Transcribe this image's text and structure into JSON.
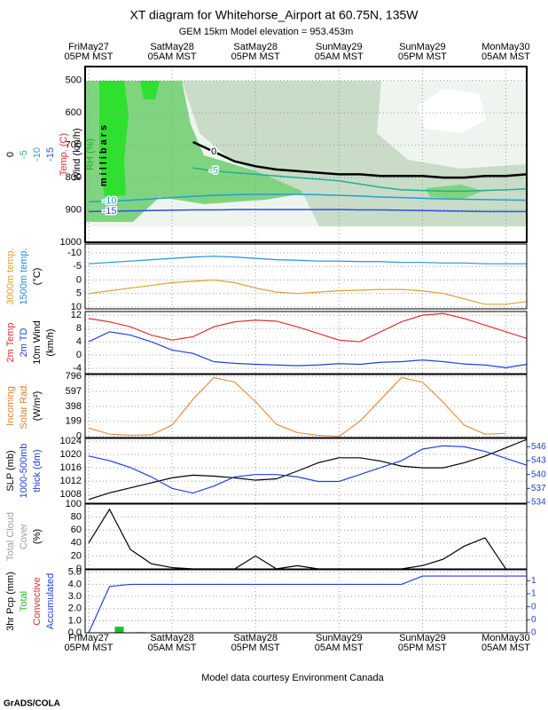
{
  "title": "XT diagram for Whitehorse_Airport at 60.75N, 135W",
  "subtitle": "GEM 15km Model elevation = 953.453m",
  "footer": "Model data courtesy Environment Canada",
  "credit": "GrADS/COLA",
  "chart_data": [
    {
      "type": "contour",
      "categories": [
        "FriMay27\n05PM MST",
        null,
        null,
        null,
        "SatMay28\n05AM MST",
        null,
        null,
        null,
        "SatMay28\n05PM MST",
        null,
        null,
        null,
        "SunMay29\n05AM MST",
        null,
        null,
        null,
        "SunMay29\n05PM MST",
        null,
        null,
        null,
        "MonMay30\n05AM MST",
        null
      ],
      "ylabels": [
        {
          "text": "Temp. (C)",
          "color": "#e03030"
        },
        {
          "text": "Wind (km/h)",
          "color": "#000000"
        },
        {
          "text": "RH (%)",
          "color": "#20b020"
        },
        {
          "text": "millibars",
          "color": "#000000"
        }
      ],
      "ylim": [
        1000,
        457
      ],
      "yticks": [
        500,
        600,
        700,
        800,
        900,
        1000
      ],
      "series": [
        {
          "name": "0",
          "color": "#000000",
          "values": [
            null,
            null,
            null,
            null,
            null,
            690,
            720,
            750,
            765,
            775,
            780,
            785,
            790,
            790,
            795,
            795,
            795,
            800,
            800,
            795,
            795,
            790
          ]
        },
        {
          "name": "-5",
          "color": "#20b090",
          "values": [
            null,
            null,
            null,
            null,
            null,
            770,
            780,
            785,
            790,
            795,
            800,
            805,
            810,
            820,
            830,
            838,
            840,
            842,
            842,
            840,
            838,
            835
          ]
        },
        {
          "name": "-10",
          "color": "#20a0d0",
          "values": [
            875,
            873,
            870,
            866,
            862,
            858,
            855,
            853,
            852,
            852,
            852,
            853,
            855,
            857,
            860,
            862,
            864,
            866,
            867,
            868,
            869,
            870
          ]
        },
        {
          "name": "-15",
          "color": "#3050e0",
          "values": [
            905,
            904,
            903,
            902,
            901,
            900,
            900,
            899,
            899,
            899,
            899,
            899,
            899,
            900,
            900,
            901,
            902,
            903,
            904,
            905,
            905,
            905
          ]
        }
      ]
    },
    {
      "type": "line",
      "ylabels": [
        {
          "text": "(°C)",
          "color": "#000000"
        }
      ],
      "ylim": [
        10.7,
        -13.3
      ],
      "yticks": [
        -10,
        -5,
        0,
        5,
        10
      ],
      "series": [
        {
          "name": "3000m temp.",
          "color": "#e0a030",
          "values": [
            5,
            4,
            3,
            2,
            1,
            0.5,
            0,
            1,
            3,
            4.5,
            5,
            4.5,
            4,
            3.8,
            3.5,
            3.5,
            4,
            5,
            7,
            9,
            9,
            8
          ]
        },
        {
          "name": "1500m temp.",
          "color": "#2090e0",
          "values": [
            -6,
            -6.5,
            -7,
            -7.5,
            -8,
            -8.5,
            -8.8,
            -8.5,
            -8,
            -7.5,
            -7.3,
            -7,
            -7,
            -6.8,
            -6.8,
            -6.5,
            -6.5,
            -6.3,
            -6.3,
            -6,
            -6,
            -6
          ]
        }
      ]
    },
    {
      "type": "line",
      "ylabels": [
        {
          "text": "10m Wind",
          "color": "#000000"
        },
        {
          "text": "(km/h)",
          "color": "#000000"
        }
      ],
      "ylim": [
        -5.6,
        13.1
      ],
      "yticks": [
        -4,
        0,
        4,
        8,
        12
      ],
      "series": [
        {
          "name": "2m Temp",
          "color": "#e03030",
          "values": [
            11,
            10,
            8.5,
            6,
            4.5,
            5.5,
            8.5,
            10,
            10.5,
            10.2,
            8.5,
            6.5,
            4.5,
            4,
            7,
            10,
            12,
            12.5,
            11,
            9,
            7,
            5
          ]
        },
        {
          "name": "2m TD",
          "color": "#2040e0",
          "values": [
            4,
            7,
            6,
            4,
            1.5,
            0.5,
            -2,
            -2.5,
            -2.8,
            -3,
            -3.2,
            -3,
            -2.6,
            -2.8,
            -2.2,
            -2,
            -1.5,
            -2,
            -2.7,
            -3,
            -3.8,
            -2.8
          ]
        }
      ]
    },
    {
      "type": "line",
      "ylabels": [
        {
          "text": "Incoming",
          "color": "#e08030"
        },
        {
          "text": "Solar Rad.",
          "color": "#e08030"
        },
        {
          "text": "(W/m²)",
          "color": "#000000"
        }
      ],
      "ylim": [
        -15,
        820
      ],
      "yticks": [
        0,
        199,
        398,
        597,
        796
      ],
      "color": "#e89040",
      "values": [
        110,
        30,
        15,
        20,
        150,
        490,
        780,
        720,
        460,
        160,
        50,
        15,
        0,
        200,
        490,
        780,
        720,
        450,
        150,
        30,
        40,
        null
      ]
    },
    {
      "type": "line",
      "ylabels": [
        {
          "text": "SLP (mb)",
          "color": "#000000"
        },
        {
          "text": "1000-500mb",
          "color": "#2040e0"
        },
        {
          "text": "thick (dm)",
          "color": "#2040e0"
        }
      ],
      "ylim": [
        1005.4,
        1024.8
      ],
      "yticks": [
        1008,
        1012,
        1016,
        1020,
        1024
      ],
      "y2lim": [
        533.8,
        547.8
      ],
      "y2ticks": [
        534,
        537,
        540,
        543,
        546
      ],
      "series": [
        {
          "color": "#000000",
          "values": [
            1006.5,
            1008.5,
            1010,
            1011.5,
            1013,
            1013.8,
            1013.5,
            1013,
            1012.3,
            1012.7,
            1015,
            1017.5,
            1019,
            1019,
            1018,
            1016.5,
            1016,
            1016,
            1017.5,
            1019.5,
            1022,
            1024.5
          ]
        },
        {
          "color": "#2040e0",
          "axis": "y2",
          "values": [
            544,
            543,
            541.5,
            539.5,
            537,
            536,
            537.5,
            539.5,
            540,
            540,
            539.5,
            538.5,
            538.5,
            540,
            541.5,
            543,
            545.5,
            546.2,
            546,
            545,
            543.5,
            542
          ]
        }
      ]
    },
    {
      "type": "line",
      "ylabels": [
        {
          "text": "Total Cloud",
          "color": "#a0a0a0"
        },
        {
          "text": "Cover",
          "color": "#a0a0a0"
        },
        {
          "text": "(%)",
          "color": "#000000"
        }
      ],
      "ylim": [
        0,
        100
      ],
      "yticks": [
        0,
        20,
        40,
        60,
        80,
        100
      ],
      "color": "#000000",
      "values": [
        40,
        92,
        30,
        8,
        2,
        0,
        0,
        0,
        20,
        0,
        5,
        0,
        0,
        0,
        0,
        0,
        5,
        15,
        35,
        48,
        0,
        null
      ]
    },
    {
      "type": "bar",
      "categories": [
        "FriMay27\n05PM MST",
        null,
        null,
        null,
        "SatMay28\n05AM MST",
        null,
        null,
        null,
        "SatMay28\n05PM MST",
        null,
        null,
        null,
        "SunMay29\n05AM MST",
        null,
        null,
        null,
        "SunMay29\n05PM MST",
        null,
        null,
        null,
        "MonMay30\n05AM MST",
        null
      ],
      "ylabels": [
        {
          "text": "3hr Pcp (mm)",
          "color": "#000000"
        }
      ],
      "ylim": [
        0,
        5.2
      ],
      "yticks": [
        {
          "value": 0,
          "label": "0.0"
        },
        {
          "value": 1,
          "label": "1.0"
        },
        {
          "value": 2,
          "label": "2.0"
        },
        {
          "value": 3,
          "label": "3.0"
        },
        {
          "value": 4,
          "label": "4.0"
        },
        {
          "value": 5,
          "label": "5.0"
        }
      ],
      "y2lim": [
        0,
        1.21
      ],
      "y2ticks": [
        {
          "value": 0,
          "label": "0"
        },
        {
          "value": 0.25,
          "label": "0"
        },
        {
          "value": 0.5,
          "label": "0"
        },
        {
          "value": 0.75,
          "label": "1"
        },
        {
          "value": 1,
          "label": "1"
        }
      ],
      "series": [
        {
          "name": "Total",
          "color": "#20c020",
          "kind": "bar",
          "values": [
            0,
            0.5,
            0,
            0,
            0,
            0,
            0,
            0,
            0,
            0,
            0,
            0,
            0,
            0,
            0,
            0,
            0.05,
            0,
            0,
            0,
            0,
            0
          ]
        },
        {
          "name": "Convective",
          "color": "#e03030",
          "kind": "bar",
          "values": [
            0,
            0,
            0.05,
            0,
            0,
            0,
            0,
            0,
            0,
            0,
            0,
            0,
            0,
            0,
            0,
            0,
            0,
            0,
            0,
            0,
            0,
            0
          ]
        },
        {
          "name": "Accumulated",
          "color": "#2040e0",
          "kind": "line",
          "axis": "y2",
          "values": [
            0,
            0.89,
            0.93,
            0.93,
            0.93,
            0.93,
            0.93,
            0.93,
            0.93,
            0.93,
            0.93,
            0.93,
            0.93,
            0.93,
            0.93,
            0.93,
            1.09,
            1.09,
            1.09,
            1.09,
            1.09,
            1.09
          ]
        }
      ]
    }
  ]
}
